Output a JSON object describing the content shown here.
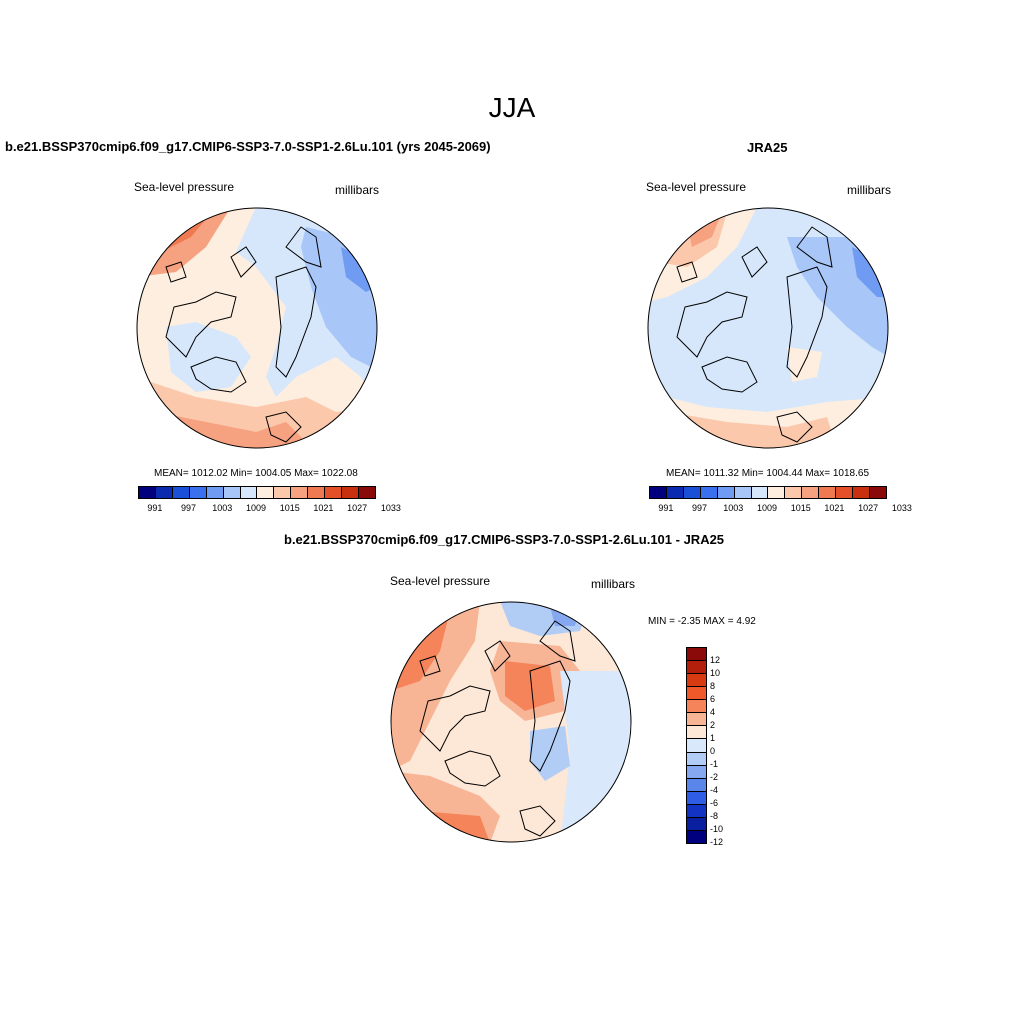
{
  "main_title": "JJA",
  "colors": {
    "abs_scale": [
      "#00007f",
      "#0a2bb0",
      "#1a4fd8",
      "#3a70ee",
      "#6f9bf2",
      "#a8c6f7",
      "#d6e7fb",
      "#fdeee0",
      "#fbc8ac",
      "#f6a180",
      "#ef7a52",
      "#e45128",
      "#c9300f",
      "#8a0a0a"
    ],
    "diff_scale": [
      "#8a0a0a",
      "#b31f0a",
      "#d83a12",
      "#f05a2a",
      "#f5845a",
      "#f8b596",
      "#fde7d6",
      "#d9e8fb",
      "#b1cdf6",
      "#85a8f0",
      "#5a86ec",
      "#2f5de6",
      "#1233c4",
      "#0a1ea0",
      "#00007f"
    ]
  },
  "panels": [
    {
      "title": "b.e21.BSSP370cmip6.f09_g17.CMIP6-SSP3-7.0-SSP1-2.6Lu.101 (yrs 2045-2069)",
      "left_label": "Sea-level pressure",
      "right_label": "millibars",
      "stats": "MEAN= 1012.02  Min= 1004.05  Max= 1022.08",
      "ticks": [
        "991",
        "997",
        "1003",
        "1009",
        "1015",
        "1021",
        "1027",
        "1033"
      ]
    },
    {
      "title": "JRA25",
      "left_label": "Sea-level pressure",
      "right_label": "millibars",
      "stats": "MEAN= 1011.32  Min= 1004.44  Max= 1018.65",
      "ticks": [
        "991",
        "997",
        "1003",
        "1009",
        "1015",
        "1021",
        "1027",
        "1033"
      ]
    }
  ],
  "diff": {
    "title": "b.e21.BSSP370cmip6.f09_g17.CMIP6-SSP3-7.0-SSP1-2.6Lu.101 - JRA25",
    "left_label": "Sea-level pressure",
    "right_label": "millibars",
    "stats": "MIN =  -2.35 MAX =   4.92",
    "ticks": [
      "12",
      "10",
      "8",
      "6",
      "4",
      "2",
      "1",
      "0",
      "-1",
      "-2",
      "-4",
      "-6",
      "-8",
      "-10",
      "-12"
    ]
  }
}
